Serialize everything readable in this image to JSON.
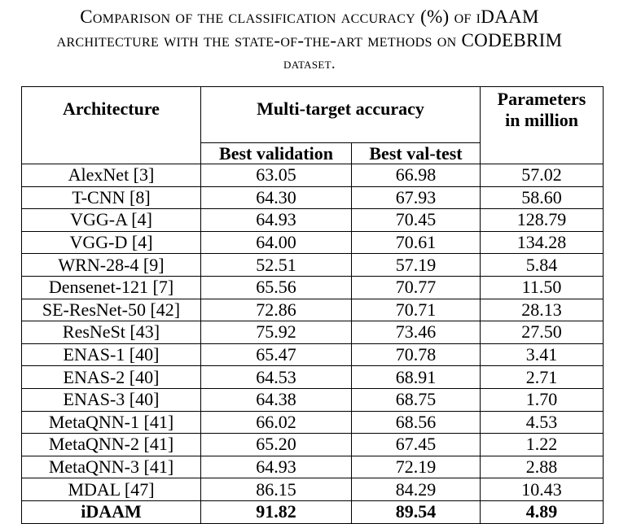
{
  "caption": {
    "line1": "Comparison of the classification accuracy (%) of iDAAM",
    "line2": "architecture with the state-of-the-art methods on CODEBRIM",
    "line3": "dataset."
  },
  "table": {
    "headers": {
      "architecture": "Architecture",
      "multi_target": "Multi-target accuracy",
      "best_validation": "Best validation",
      "best_val_test": "Best val-test",
      "parameters_line1": "Parameters",
      "parameters_line2": "in million"
    },
    "rows": [
      {
        "architecture": "AlexNet [3]",
        "best_validation": "63.05",
        "best_val_test": "66.98",
        "parameters": "57.02"
      },
      {
        "architecture": "T-CNN [8]",
        "best_validation": "64.30",
        "best_val_test": "67.93",
        "parameters": "58.60"
      },
      {
        "architecture": "VGG-A [4]",
        "best_validation": "64.93",
        "best_val_test": "70.45",
        "parameters": "128.79"
      },
      {
        "architecture": "VGG-D [4]",
        "best_validation": "64.00",
        "best_val_test": "70.61",
        "parameters": "134.28"
      },
      {
        "architecture": "WRN-28-4 [9]",
        "best_validation": "52.51",
        "best_val_test": "57.19",
        "parameters": "5.84"
      },
      {
        "architecture": "Densenet-121 [7]",
        "best_validation": "65.56",
        "best_val_test": "70.77",
        "parameters": "11.50"
      },
      {
        "architecture": "SE-ResNet-50 [42]",
        "best_validation": "72.86",
        "best_val_test": "70.71",
        "parameters": "28.13"
      },
      {
        "architecture": "ResNeSt [43]",
        "best_validation": "75.92",
        "best_val_test": "73.46",
        "parameters": "27.50"
      },
      {
        "architecture": "ENAS-1 [40]",
        "best_validation": "65.47",
        "best_val_test": "70.78",
        "parameters": "3.41"
      },
      {
        "architecture": "ENAS-2 [40]",
        "best_validation": "64.53",
        "best_val_test": "68.91",
        "parameters": "2.71"
      },
      {
        "architecture": "ENAS-3 [40]",
        "best_validation": "64.38",
        "best_val_test": "68.75",
        "parameters": "1.70"
      },
      {
        "architecture": "MetaQNN-1 [41]",
        "best_validation": "66.02",
        "best_val_test": "68.56",
        "parameters": "4.53"
      },
      {
        "architecture": "MetaQNN-2 [41]",
        "best_validation": "65.20",
        "best_val_test": "67.45",
        "parameters": "1.22"
      },
      {
        "architecture": "MetaQNN-3 [41]",
        "best_validation": "64.93",
        "best_val_test": "72.19",
        "parameters": "2.88"
      },
      {
        "architecture": "MDAL [47]",
        "best_validation": "86.15",
        "best_val_test": "84.29",
        "parameters": "10.43"
      },
      {
        "architecture": "iDAAM",
        "best_validation": "91.82",
        "best_val_test": "89.54",
        "parameters": "4.89"
      }
    ]
  }
}
